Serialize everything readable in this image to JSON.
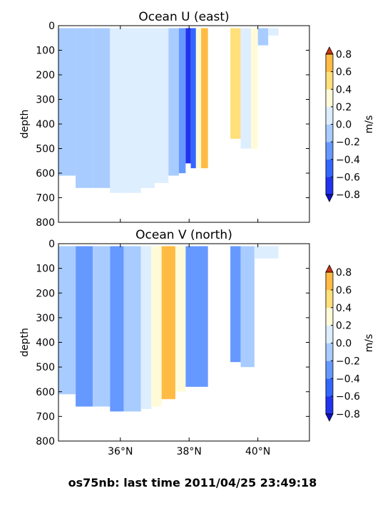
{
  "page": {
    "suptitle": "os75nb: last time 2011/04/25 23:49:18"
  },
  "colors": {
    "levels": [
      "#2233ee",
      "#3366ff",
      "#6699ff",
      "#a8ccff",
      "#ddeeff",
      "#fffbd8",
      "#ffe07a",
      "#ffbb44",
      "#ff8833",
      "#ee5511"
    ],
    "under": "#1010cc",
    "over": "#cc3311",
    "frame": "#000000"
  },
  "chart_data": [
    {
      "type": "heatmap",
      "title": "Ocean U (east)",
      "ylabel": "depth",
      "xlabel": "",
      "ylim": [
        800,
        0
      ],
      "xlim": [
        34.2,
        41.5
      ],
      "xticks": [
        36,
        38,
        40
      ],
      "xtick_labels": [],
      "yticks": [
        0,
        100,
        200,
        300,
        400,
        500,
        600,
        700,
        800
      ],
      "colorbar": {
        "label": "m/s",
        "ticks": [
          "0.8",
          "0.6",
          "0.4",
          "0.2",
          "0.0",
          "−0.2",
          "−0.4",
          "−0.6",
          "−0.8"
        ],
        "levels": [
          -0.8,
          -0.6,
          -0.4,
          -0.2,
          0.0,
          0.2,
          0.4,
          0.6,
          0.8
        ]
      },
      "bands": [
        {
          "x0": 34.2,
          "x1": 34.7,
          "v": -0.1,
          "dmax": 610
        },
        {
          "x0": 34.7,
          "x1": 35.2,
          "v": -0.15,
          "dmax": 660
        },
        {
          "x0": 35.2,
          "x1": 35.7,
          "v": -0.1,
          "dmax": 660
        },
        {
          "x0": 35.7,
          "x1": 36.1,
          "v": 0.05,
          "dmax": 680
        },
        {
          "x0": 36.1,
          "x1": 36.6,
          "v": 0.1,
          "dmax": 680
        },
        {
          "x0": 36.6,
          "x1": 37.0,
          "v": 0.1,
          "dmax": 660
        },
        {
          "x0": 37.0,
          "x1": 37.4,
          "v": 0.05,
          "dmax": 640
        },
        {
          "x0": 37.4,
          "x1": 37.7,
          "v": -0.05,
          "dmax": 610
        },
        {
          "x0": 37.7,
          "x1": 37.9,
          "v": -0.3,
          "dmax": 600
        },
        {
          "x0": 37.9,
          "x1": 38.05,
          "v": -0.75,
          "dmax": 560
        },
        {
          "x0": 38.05,
          "x1": 38.2,
          "v": -0.55,
          "dmax": 580
        },
        {
          "x0": 38.2,
          "x1": 38.35,
          "v": 0.3,
          "dmax": 580
        },
        {
          "x0": 38.35,
          "x1": 38.55,
          "v": 0.6,
          "dmax": 580
        },
        {
          "x0": 39.2,
          "x1": 39.5,
          "v": 0.4,
          "dmax": 460
        },
        {
          "x0": 39.5,
          "x1": 39.8,
          "v": 0.1,
          "dmax": 500
        },
        {
          "x0": 39.8,
          "x1": 40.0,
          "v": 0.35,
          "dmax": 500
        },
        {
          "x0": 40.0,
          "x1": 40.3,
          "v": -0.05,
          "dmax": 80
        },
        {
          "x0": 40.3,
          "x1": 40.6,
          "v": 0.05,
          "dmax": 40
        }
      ]
    },
    {
      "type": "heatmap",
      "title": "Ocean V (north)",
      "ylabel": "depth",
      "xlabel": "",
      "ylim": [
        800,
        0
      ],
      "xlim": [
        34.2,
        41.5
      ],
      "xticks": [
        36,
        38,
        40
      ],
      "xtick_labels": [
        "36°N",
        "38°N",
        "40°N"
      ],
      "yticks": [
        0,
        100,
        200,
        300,
        400,
        500,
        600,
        700,
        800
      ],
      "colorbar": {
        "label": "m/s",
        "ticks": [
          "0.8",
          "0.6",
          "0.4",
          "0.2",
          "0.0",
          "−0.2",
          "−0.4",
          "−0.6",
          "−0.8"
        ],
        "levels": [
          -0.8,
          -0.6,
          -0.4,
          -0.2,
          0.0,
          0.2,
          0.4,
          0.6,
          0.8
        ]
      },
      "bands": [
        {
          "x0": 34.2,
          "x1": 34.7,
          "v": -0.1,
          "dmax": 610
        },
        {
          "x0": 34.7,
          "x1": 35.2,
          "v": -0.25,
          "dmax": 660
        },
        {
          "x0": 35.2,
          "x1": 35.7,
          "v": -0.1,
          "dmax": 660
        },
        {
          "x0": 35.7,
          "x1": 36.1,
          "v": -0.25,
          "dmax": 680
        },
        {
          "x0": 36.1,
          "x1": 36.6,
          "v": -0.1,
          "dmax": 680
        },
        {
          "x0": 36.6,
          "x1": 36.9,
          "v": 0.05,
          "dmax": 670
        },
        {
          "x0": 36.9,
          "x1": 37.2,
          "v": 0.35,
          "dmax": 660
        },
        {
          "x0": 37.2,
          "x1": 37.6,
          "v": 0.7,
          "dmax": 630
        },
        {
          "x0": 37.6,
          "x1": 37.9,
          "v": 0.3,
          "dmax": 600
        },
        {
          "x0": 37.9,
          "x1": 38.55,
          "v": -0.3,
          "dmax": 580
        },
        {
          "x0": 39.2,
          "x1": 39.5,
          "v": -0.25,
          "dmax": 480
        },
        {
          "x0": 39.5,
          "x1": 39.9,
          "v": -0.1,
          "dmax": 500
        },
        {
          "x0": 39.9,
          "x1": 40.6,
          "v": 0.05,
          "dmax": 60
        }
      ]
    }
  ]
}
